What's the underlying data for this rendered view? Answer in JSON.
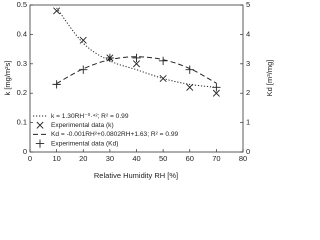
{
  "chart_data": {
    "type": "scatter",
    "x_label": "Relative Humidity RH [%]",
    "y_label": "k [mg/m²s]",
    "y2_label": "Kd [m³/mg]",
    "xlim": [
      0,
      80
    ],
    "xticks": [
      0,
      10,
      20,
      30,
      40,
      50,
      60,
      70,
      80
    ],
    "ylim": [
      0,
      0.5
    ],
    "yticks": [
      0,
      0.1,
      0.2,
      0.3,
      0.4,
      0.5
    ],
    "y2lim": [
      0,
      5
    ],
    "y2ticks": [
      0,
      1,
      2,
      3,
      4,
      5
    ],
    "legend": "lower left",
    "series": [
      {
        "name": "k = 1.30RH⁻⁰·⁴²; R² = 0.99",
        "mode": "line",
        "dash": "1.2,1.8",
        "color": "#222222",
        "x": [
          10,
          20,
          30,
          40,
          50,
          60,
          70
        ],
        "values": [
          0.49,
          0.37,
          0.31,
          0.28,
          0.25,
          0.23,
          0.22
        ]
      },
      {
        "name": "Experimental data (k)",
        "mode": "markers",
        "marker": "x",
        "color": "#222222",
        "x": [
          10,
          20,
          30,
          40,
          50,
          60,
          70
        ],
        "values": [
          0.48,
          0.38,
          0.32,
          0.3,
          0.25,
          0.22,
          0.2
        ]
      },
      {
        "name": "Kd = -0.001RH²+0.0802RH+1.63; R² = 0.99",
        "mode": "line",
        "dash": "5,3",
        "axis": "y2",
        "color": "#222222",
        "x": [
          10,
          20,
          30,
          40,
          50,
          60,
          70
        ],
        "values": [
          2.33,
          2.83,
          3.14,
          3.24,
          3.14,
          2.84,
          2.34
        ]
      },
      {
        "name": "Experimental data (Kd)",
        "mode": "markers",
        "marker": "+",
        "axis": "y2",
        "color": "#222222",
        "x": [
          10,
          20,
          30,
          40,
          50,
          60,
          70
        ],
        "values": [
          2.3,
          2.8,
          3.2,
          3.2,
          3.1,
          2.8,
          2.2
        ]
      }
    ]
  }
}
